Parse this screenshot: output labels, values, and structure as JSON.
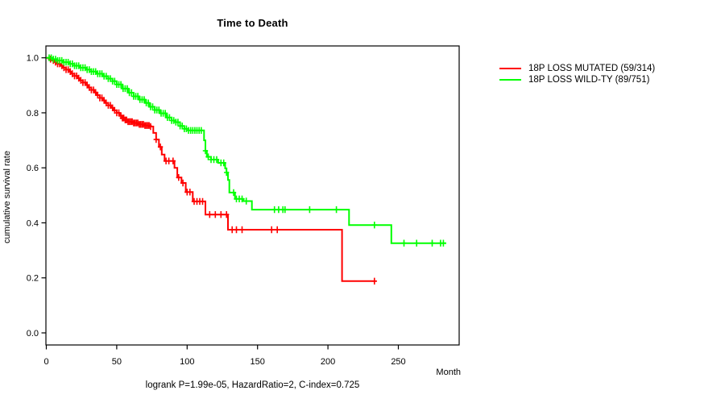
{
  "figure": {
    "title": "Time to Death",
    "y_axis_label": "cumulative survival rate",
    "x_axis_label": "Month",
    "annotation": "logrank P=1.99e-05, HazardRatio=2, C-index=0.725"
  },
  "chart_data": {
    "type": "line",
    "subtype": "kaplan_meier_step",
    "title": "Time to Death",
    "xlabel": "Month",
    "ylabel": "cumulative survival rate",
    "annotation": "logrank P=1.99e-05, HazardRatio=2, C-index=0.725",
    "xlim": [
      0,
      293
    ],
    "ylim": [
      0.0,
      1.04
    ],
    "x_ticks": [
      {
        "v": 0,
        "label": "0"
      },
      {
        "v": 50,
        "label": "50"
      },
      {
        "v": 100,
        "label": "100"
      },
      {
        "v": 150,
        "label": "150"
      },
      {
        "v": 200,
        "label": "200"
      },
      {
        "v": 250,
        "label": "250"
      }
    ],
    "y_ticks": [
      {
        "v": 0.0,
        "label": "0.0"
      },
      {
        "v": 0.2,
        "label": "0.2"
      },
      {
        "v": 0.4,
        "label": "0.4"
      },
      {
        "v": 0.6,
        "label": "0.6"
      },
      {
        "v": 0.8,
        "label": "0.8"
      },
      {
        "v": 1.0,
        "label": "1.0"
      }
    ],
    "grid": false,
    "legend_position": "right-outside",
    "series": [
      {
        "name": "18P LOSS MUTATED (59/314)",
        "color": "#ff0000",
        "events_total": "59/314",
        "end_month": 234,
        "steps": [
          [
            0,
            1.0
          ],
          [
            2,
            0.995
          ],
          [
            4,
            0.99
          ],
          [
            6,
            0.984
          ],
          [
            8,
            0.978
          ],
          [
            10,
            0.971
          ],
          [
            12,
            0.964
          ],
          [
            14,
            0.957
          ],
          [
            16,
            0.95
          ],
          [
            18,
            0.942
          ],
          [
            20,
            0.934
          ],
          [
            22,
            0.926
          ],
          [
            24,
            0.918
          ],
          [
            26,
            0.91
          ],
          [
            28,
            0.901
          ],
          [
            30,
            0.892
          ],
          [
            32,
            0.883
          ],
          [
            34,
            0.874
          ],
          [
            36,
            0.864
          ],
          [
            38,
            0.854
          ],
          [
            40,
            0.845
          ],
          [
            42,
            0.836
          ],
          [
            44,
            0.827
          ],
          [
            46,
            0.818
          ],
          [
            48,
            0.809
          ],
          [
            50,
            0.8
          ],
          [
            52,
            0.789
          ],
          [
            54,
            0.781
          ],
          [
            56,
            0.774
          ],
          [
            58,
            0.768
          ],
          [
            62,
            0.763
          ],
          [
            66,
            0.758
          ],
          [
            70,
            0.754
          ],
          [
            74,
            0.75
          ],
          [
            76,
            0.727
          ],
          [
            78,
            0.703
          ],
          [
            80,
            0.676
          ],
          [
            82,
            0.648
          ],
          [
            84,
            0.625
          ],
          [
            91,
            0.6
          ],
          [
            93,
            0.565
          ],
          [
            96,
            0.545
          ],
          [
            99,
            0.512
          ],
          [
            104,
            0.478
          ],
          [
            113,
            0.43
          ],
          [
            129,
            0.375
          ],
          [
            210,
            0.188
          ]
        ],
        "censor_months": [
          3,
          5,
          6.5,
          8,
          9.5,
          11,
          12.5,
          14,
          15.5,
          17,
          18.5,
          20,
          21.5,
          23,
          24.5,
          26,
          27.5,
          29,
          30.5,
          32,
          33.5,
          35,
          36.5,
          38,
          39.5,
          41,
          42.5,
          44,
          45.5,
          47,
          48.5,
          50,
          51.5,
          53,
          54,
          55,
          56,
          57,
          58,
          59,
          60,
          61,
          62,
          63,
          64,
          65,
          66,
          67,
          68,
          69,
          70,
          71,
          72,
          73,
          74,
          78,
          81,
          85,
          87,
          90,
          94,
          97,
          100,
          102,
          105,
          107,
          109,
          111,
          116,
          120,
          124,
          128,
          132,
          135,
          139,
          160,
          164,
          233
        ]
      },
      {
        "name": "18P LOSS WILD-TY (89/751)",
        "color": "#00ff00",
        "events_total": "89/751",
        "end_month": 284,
        "steps": [
          [
            0,
            1.0
          ],
          [
            4,
            0.995
          ],
          [
            8,
            0.99
          ],
          [
            12,
            0.984
          ],
          [
            16,
            0.978
          ],
          [
            20,
            0.971
          ],
          [
            24,
            0.964
          ],
          [
            28,
            0.957
          ],
          [
            32,
            0.95
          ],
          [
            36,
            0.942
          ],
          [
            40,
            0.933
          ],
          [
            44,
            0.924
          ],
          [
            47,
            0.915
          ],
          [
            50,
            0.903
          ],
          [
            54,
            0.888
          ],
          [
            58,
            0.873
          ],
          [
            62,
            0.86
          ],
          [
            66,
            0.848
          ],
          [
            70,
            0.836
          ],
          [
            73,
            0.822
          ],
          [
            77,
            0.81
          ],
          [
            81,
            0.798
          ],
          [
            85,
            0.783
          ],
          [
            89,
            0.772
          ],
          [
            92,
            0.766
          ],
          [
            95,
            0.752
          ],
          [
            98,
            0.742
          ],
          [
            101,
            0.736
          ],
          [
            112,
            0.7
          ],
          [
            113,
            0.662
          ],
          [
            114,
            0.64
          ],
          [
            117,
            0.63
          ],
          [
            122,
            0.618
          ],
          [
            127,
            0.598
          ],
          [
            128,
            0.583
          ],
          [
            129,
            0.556
          ],
          [
            130,
            0.51
          ],
          [
            134,
            0.487
          ],
          [
            140,
            0.479
          ],
          [
            146,
            0.448
          ],
          [
            215,
            0.392
          ],
          [
            245,
            0.326
          ]
        ],
        "censor_months": [
          2,
          3.5,
          5,
          6.5,
          8,
          9.5,
          11,
          12.5,
          14,
          15.5,
          17,
          18.5,
          20,
          21.5,
          23,
          24.5,
          26,
          27.5,
          29,
          30.5,
          32,
          33.5,
          35,
          36.5,
          38,
          39.5,
          41,
          42.5,
          44,
          45.5,
          47,
          48.5,
          50,
          51.5,
          53,
          54.5,
          56,
          57.5,
          59,
          60.5,
          62,
          63.5,
          65,
          66.5,
          68,
          69.5,
          71,
          72.5,
          74,
          75.5,
          77,
          78.5,
          80,
          81.5,
          83,
          84.5,
          86,
          87.5,
          89,
          90.5,
          92,
          93.5,
          95,
          96.5,
          98,
          99.5,
          101,
          102.5,
          104,
          105.5,
          107,
          108.5,
          110,
          113,
          115,
          117,
          119,
          121,
          124,
          126,
          128,
          133,
          135,
          137,
          139,
          142,
          162,
          165,
          168,
          169.5,
          187,
          206,
          233,
          254,
          263,
          274,
          280,
          282
        ]
      }
    ]
  }
}
